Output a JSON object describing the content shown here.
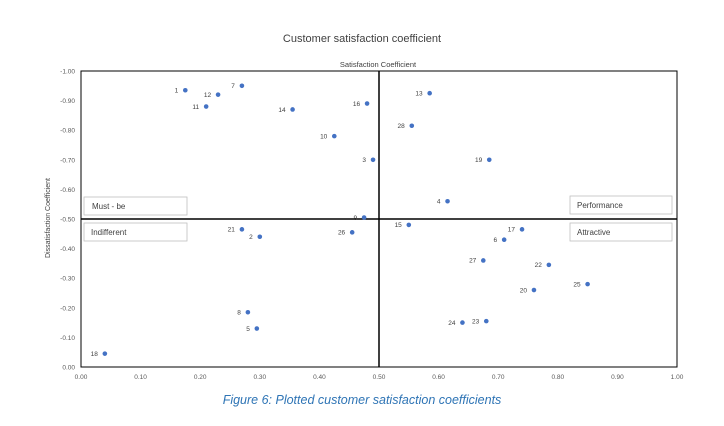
{
  "chart_data": {
    "type": "scatter",
    "title": "Customer satisfaction coefficient",
    "subtitle": "Satisfaction Coefficient",
    "xlabel": "",
    "ylabel": "Dissatisfaction Coefficient",
    "xlim": [
      0,
      1
    ],
    "ylim": [
      0,
      -1
    ],
    "x_ticks": [
      "0.00",
      "0.10",
      "0.20",
      "0.30",
      "0.40",
      "0.50",
      "0.60",
      "0.70",
      "0.80",
      "0.90",
      "1.00"
    ],
    "y_ticks": [
      "0.00",
      "-0.10",
      "-0.20",
      "-0.30",
      "-0.40",
      "-0.50",
      "-0.60",
      "-0.70",
      "-0.80",
      "-0.90",
      "-1.00"
    ],
    "marker_color": "#4472c4",
    "grid": false,
    "points": [
      {
        "label": "1",
        "x": 0.175,
        "y": -0.935
      },
      {
        "label": "2",
        "x": 0.3,
        "y": -0.44
      },
      {
        "label": "3",
        "x": 0.49,
        "y": -0.7
      },
      {
        "label": "4",
        "x": 0.615,
        "y": -0.56
      },
      {
        "label": "5",
        "x": 0.295,
        "y": -0.13
      },
      {
        "label": "6",
        "x": 0.71,
        "y": -0.43
      },
      {
        "label": "7",
        "x": 0.27,
        "y": -0.95
      },
      {
        "label": "8",
        "x": 0.28,
        "y": -0.185
      },
      {
        "label": "9",
        "x": 0.475,
        "y": -0.505
      },
      {
        "label": "11",
        "x": 0.21,
        "y": -0.88
      },
      {
        "label": "12",
        "x": 0.23,
        "y": -0.92
      },
      {
        "label": "13",
        "x": 0.585,
        "y": -0.925
      },
      {
        "label": "14",
        "x": 0.355,
        "y": -0.87
      },
      {
        "label": "15",
        "x": 0.55,
        "y": -0.48
      },
      {
        "label": "16",
        "x": 0.48,
        "y": -0.89
      },
      {
        "label": "17",
        "x": 0.74,
        "y": -0.465
      },
      {
        "label": "18",
        "x": 0.04,
        "y": -0.045
      },
      {
        "label": "19",
        "x": 0.685,
        "y": -0.7
      },
      {
        "label": "20",
        "x": 0.76,
        "y": -0.26
      },
      {
        "label": "21",
        "x": 0.27,
        "y": -0.465
      },
      {
        "label": "22",
        "x": 0.785,
        "y": -0.345
      },
      {
        "label": "23",
        "x": 0.68,
        "y": -0.155
      },
      {
        "label": "24",
        "x": 0.64,
        "y": -0.15
      },
      {
        "label": "25",
        "x": 0.85,
        "y": -0.28
      },
      {
        "label": "26",
        "x": 0.455,
        "y": -0.455
      },
      {
        "label": "27",
        "x": 0.675,
        "y": -0.36
      },
      {
        "label": "28",
        "x": 0.555,
        "y": -0.815
      },
      {
        "label": "10",
        "x": 0.425,
        "y": -0.78
      }
    ],
    "divider": {
      "x": 0.5,
      "y": -0.5
    },
    "quadrants": {
      "top_left": "Must - be",
      "top_right": "Performance",
      "bottom_left": "Indifferent",
      "bottom_right": "Attractive"
    }
  },
  "caption": "Figure 6: Plotted customer satisfaction coefficients"
}
